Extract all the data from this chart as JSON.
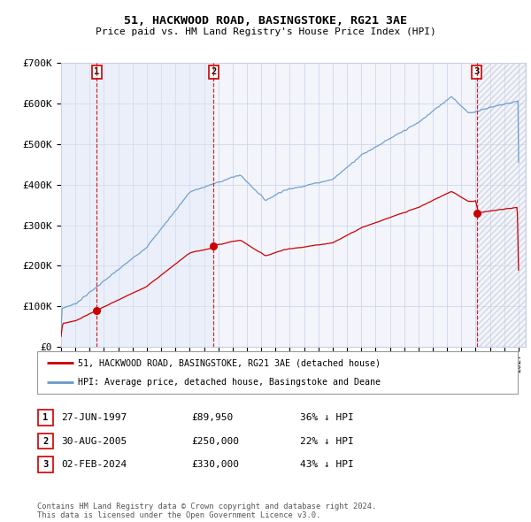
{
  "title": "51, HACKWOOD ROAD, BASINGSTOKE, RG21 3AE",
  "subtitle": "Price paid vs. HM Land Registry's House Price Index (HPI)",
  "ylim": [
    0,
    700000
  ],
  "yticks": [
    0,
    100000,
    200000,
    300000,
    400000,
    500000,
    600000,
    700000
  ],
  "ytick_labels": [
    "£0",
    "£100K",
    "£200K",
    "£300K",
    "£400K",
    "£500K",
    "£600K",
    "£700K"
  ],
  "xlim_start": 1995.0,
  "xlim_end": 2027.5,
  "sale_dates": [
    1997.49,
    2005.66,
    2024.09
  ],
  "sale_prices": [
    89950,
    250000,
    330000
  ],
  "sale_labels": [
    "1",
    "2",
    "3"
  ],
  "sale_date_strings": [
    "27-JUN-1997",
    "30-AUG-2005",
    "02-FEB-2024"
  ],
  "sale_price_strings": [
    "£89,950",
    "£250,000",
    "£330,000"
  ],
  "sale_hpi_strings": [
    "36% ↓ HPI",
    "22% ↓ HPI",
    "43% ↓ HPI"
  ],
  "legend_red": "51, HACKWOOD ROAD, BASINGSTOKE, RG21 3AE (detached house)",
  "legend_blue": "HPI: Average price, detached house, Basingstoke and Deane",
  "footer": "Contains HM Land Registry data © Crown copyright and database right 2024.\nThis data is licensed under the Open Government Licence v3.0.",
  "plot_bg": "#ffffff",
  "grid_color": "#c8d0e8",
  "red_color": "#cc0000",
  "blue_color": "#6699cc",
  "shade_color": "#dde5f5"
}
